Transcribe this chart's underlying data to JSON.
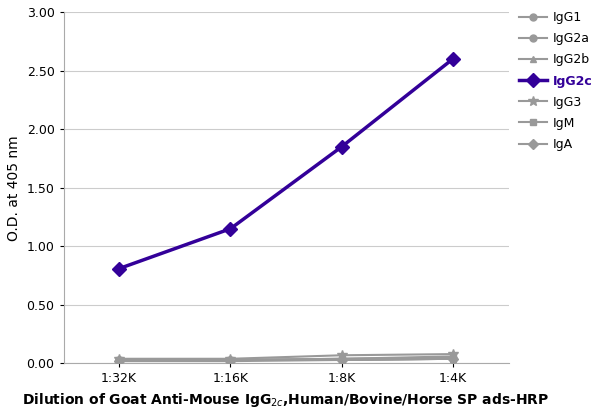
{
  "x_positions": [
    0,
    1,
    2,
    3
  ],
  "x_tick_labels": [
    "1:32K",
    "1:16K",
    "1:8K",
    "1:4K"
  ],
  "series_order": [
    "IgG1",
    "IgG2a",
    "IgG2b",
    "IgG2c",
    "IgG3",
    "IgM",
    "IgA"
  ],
  "series": {
    "IgG1": {
      "values": [
        0.03,
        0.03,
        0.03,
        0.04
      ],
      "color": "#999999",
      "marker": "o",
      "lw": 1.5,
      "ms": 5
    },
    "IgG2a": {
      "values": [
        0.03,
        0.03,
        0.04,
        0.05
      ],
      "color": "#999999",
      "marker": "o",
      "lw": 1.5,
      "ms": 5
    },
    "IgG2b": {
      "values": [
        0.03,
        0.03,
        0.03,
        0.04
      ],
      "color": "#999999",
      "marker": "^",
      "lw": 1.5,
      "ms": 5
    },
    "IgG2c": {
      "values": [
        0.81,
        1.15,
        1.85,
        2.6
      ],
      "color": "#330099",
      "marker": "D",
      "lw": 2.5,
      "ms": 7
    },
    "IgG3": {
      "values": [
        0.04,
        0.04,
        0.07,
        0.08
      ],
      "color": "#999999",
      "marker": "*",
      "lw": 1.5,
      "ms": 7
    },
    "IgM": {
      "values": [
        0.03,
        0.03,
        0.04,
        0.06
      ],
      "color": "#999999",
      "marker": "s",
      "lw": 1.5,
      "ms": 5
    },
    "IgA": {
      "values": [
        0.02,
        0.02,
        0.03,
        0.04
      ],
      "color": "#999999",
      "marker": "D",
      "lw": 1.5,
      "ms": 5
    }
  },
  "legend_labels": {
    "IgG1": "IgG1",
    "IgG2a": "IgG2a",
    "IgG2b": "IgG2b",
    "IgG2c": "IgG2c",
    "IgG3": "IgG3",
    "IgM": "IgM",
    "IgA": "IgA"
  },
  "ylabel": "O.D. at 405 nm",
  "xlabel_full": "Dilution of Goat Anti-Mouse IgG$_{2c}$,Human/Bovine/Horse SP ads-HRP",
  "ylim": [
    0.0,
    3.0
  ],
  "yticks": [
    0.0,
    0.5,
    1.0,
    1.5,
    2.0,
    2.5,
    3.0
  ],
  "background_color": "#ffffff",
  "grid_color": "#cccccc",
  "spine_color": "#aaaaaa"
}
